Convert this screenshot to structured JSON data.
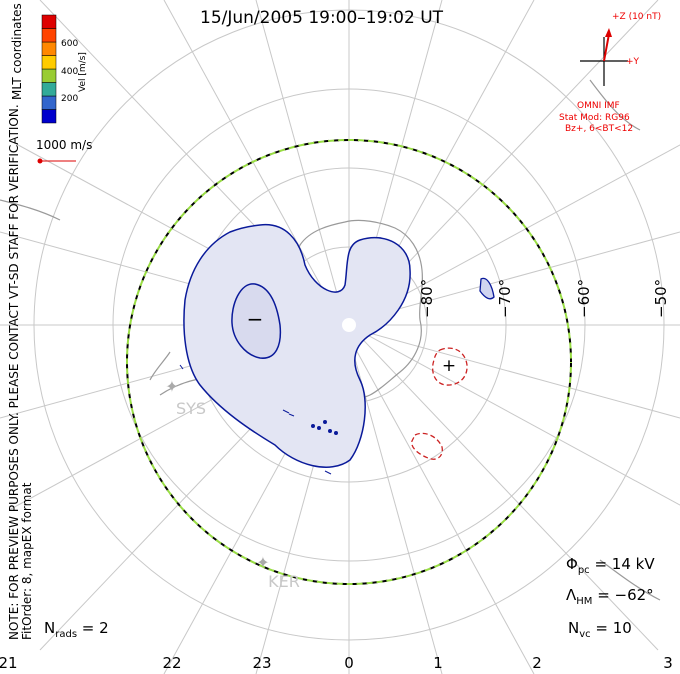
{
  "title": "15/Jun/2005  19:00–19:02 UT",
  "side_note": {
    "line1": "NOTE: FOR PREVIEW PURPOSES ONLY. PLEASE CONTACT VT-SD STAFF FOR VERIFICATION.",
    "line2": "FitOrder: 8,  mapEX format"
  },
  "coords_label": "MLT coordinates",
  "colorbar": {
    "title": "Vel [m/s]",
    "ticks": [
      "600",
      "400",
      "200"
    ],
    "colors": [
      "#0000cc",
      "#3366cc",
      "#33aa99",
      "#99cc33",
      "#ffcc00",
      "#ff8800",
      "#ff4400",
      "#dd0000"
    ]
  },
  "scale_vector": "1000 m/s",
  "imf": {
    "bz_label": "+Z (10 nT)",
    "by_label": "+Y",
    "source": "OMNI IMF",
    "stat_mod": "Stat Mod: RG96",
    "condition": "Bz+, 6<BT<12",
    "color": "#dd0000"
  },
  "latitudes": [
    "−80°",
    "−70°",
    "−60°",
    "−50°"
  ],
  "stations": [
    "SYS",
    "KER"
  ],
  "mlt_ticks": [
    "21",
    "22",
    "23",
    "0",
    "1",
    "2",
    "3"
  ],
  "stats": {
    "phi_label": "Φ",
    "phi_sub": "pc",
    "phi_value": " = 14 kV",
    "lambda_label": "Λ",
    "lambda_sub": "HM",
    "lambda_value": " = −62°",
    "nvc_label": "N",
    "nvc_sub": "vc",
    "nvc_value": " = 10",
    "nrads_label": "N",
    "nrads_sub": "rads",
    "nrads_value": " = 2"
  },
  "contours": {
    "negative_marker": "−",
    "positive_marker": "+",
    "negative_color": "#0a1a9a",
    "positive_color": "#cc2222",
    "fill_color": "#e3e5f3"
  },
  "boundary_colors": [
    "#000000",
    "#99dd44"
  ]
}
